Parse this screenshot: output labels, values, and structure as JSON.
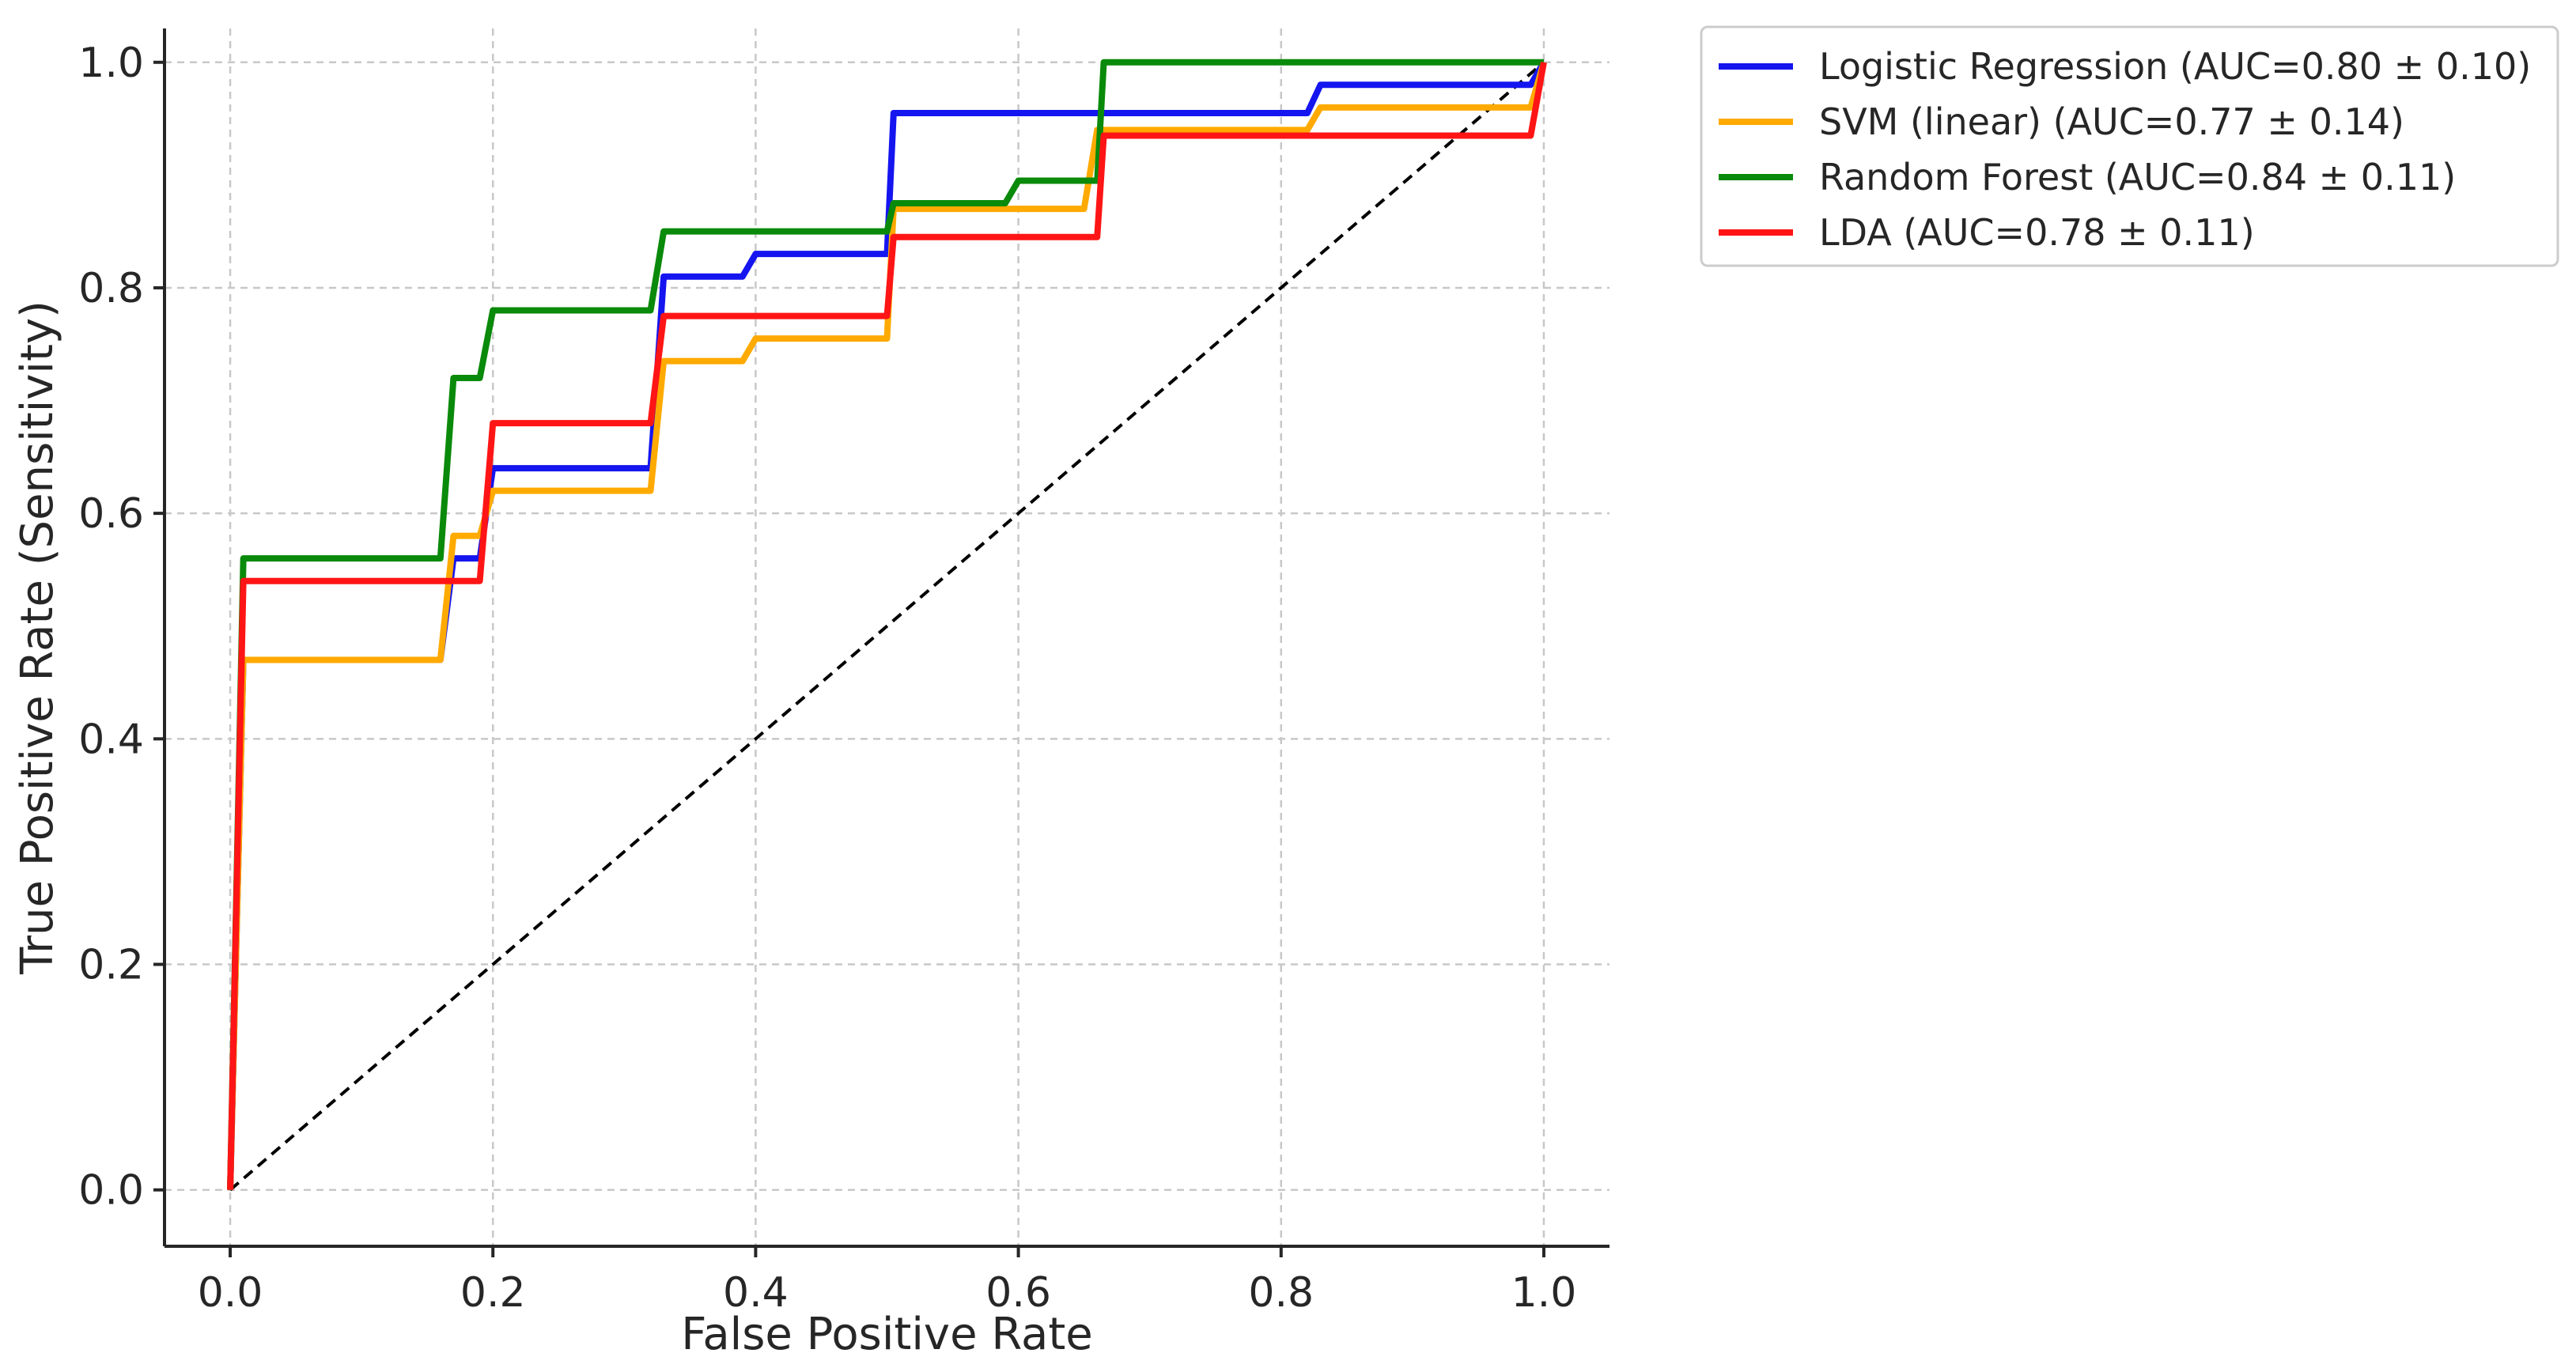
{
  "chart_data": {
    "type": "line",
    "title": "",
    "xlabel": "False Positive Rate",
    "ylabel": "True Positive Rate (Sensitivity)",
    "xlim": [
      -0.05,
      1.05
    ],
    "ylim": [
      -0.05,
      1.03
    ],
    "xticks": [
      0.0,
      0.2,
      0.4,
      0.6,
      0.8,
      1.0
    ],
    "xtick_labels": [
      "0.0",
      "0.2",
      "0.4",
      "0.6",
      "0.8",
      "1.0"
    ],
    "yticks": [
      0.0,
      0.2,
      0.4,
      0.6,
      0.8,
      1.0
    ],
    "ytick_labels": [
      "0.0",
      "0.2",
      "0.4",
      "0.6",
      "0.8",
      "1.0"
    ],
    "grid": true,
    "legend_position": "outside-top-right",
    "reference_line": {
      "style": "dashed",
      "color": "#000000",
      "x": [
        0,
        1
      ],
      "y": [
        0,
        1
      ]
    },
    "series": [
      {
        "name": "Logistic Regression (AUC=0.80 ± 0.10)",
        "color": "#1515f0",
        "x": [
          0,
          0.01,
          0.16,
          0.17,
          0.19,
          0.2,
          0.32,
          0.33,
          0.39,
          0.4,
          0.49,
          0.5,
          0.505,
          0.82,
          0.83,
          0.98,
          0.99,
          1.0
        ],
        "y": [
          0,
          0.47,
          0.47,
          0.56,
          0.56,
          0.64,
          0.64,
          0.81,
          0.81,
          0.83,
          0.83,
          0.83,
          0.955,
          0.955,
          0.98,
          0.98,
          0.98,
          1.0
        ]
      },
      {
        "name": "SVM (linear) (AUC=0.77 ± 0.14)",
        "color": "#ffaa00",
        "x": [
          0,
          0.01,
          0.16,
          0.17,
          0.19,
          0.2,
          0.32,
          0.33,
          0.39,
          0.4,
          0.49,
          0.5,
          0.505,
          0.65,
          0.66,
          0.82,
          0.83,
          0.98,
          0.99,
          1.0
        ],
        "y": [
          0,
          0.47,
          0.47,
          0.58,
          0.58,
          0.62,
          0.62,
          0.735,
          0.735,
          0.755,
          0.755,
          0.755,
          0.87,
          0.87,
          0.94,
          0.94,
          0.96,
          0.96,
          0.96,
          1.0
        ]
      },
      {
        "name": "Random Forest (AUC=0.84 ± 0.11)",
        "color": "#0a8a0a",
        "x": [
          0,
          0.01,
          0.16,
          0.17,
          0.19,
          0.2,
          0.32,
          0.33,
          0.49,
          0.5,
          0.505,
          0.59,
          0.6,
          0.65,
          0.66,
          0.665,
          1.0
        ],
        "y": [
          0,
          0.56,
          0.56,
          0.72,
          0.72,
          0.78,
          0.78,
          0.85,
          0.85,
          0.85,
          0.875,
          0.875,
          0.895,
          0.895,
          0.895,
          1.0,
          1.0
        ]
      },
      {
        "name": "LDA (AUC=0.78 ± 0.11)",
        "color": "#ff1515",
        "x": [
          0,
          0.01,
          0.19,
          0.2,
          0.32,
          0.33,
          0.49,
          0.5,
          0.505,
          0.65,
          0.66,
          0.665,
          0.98,
          0.99,
          1.0
        ],
        "y": [
          0,
          0.54,
          0.54,
          0.68,
          0.68,
          0.775,
          0.775,
          0.775,
          0.845,
          0.845,
          0.845,
          0.935,
          0.935,
          0.935,
          1.0
        ]
      }
    ]
  }
}
